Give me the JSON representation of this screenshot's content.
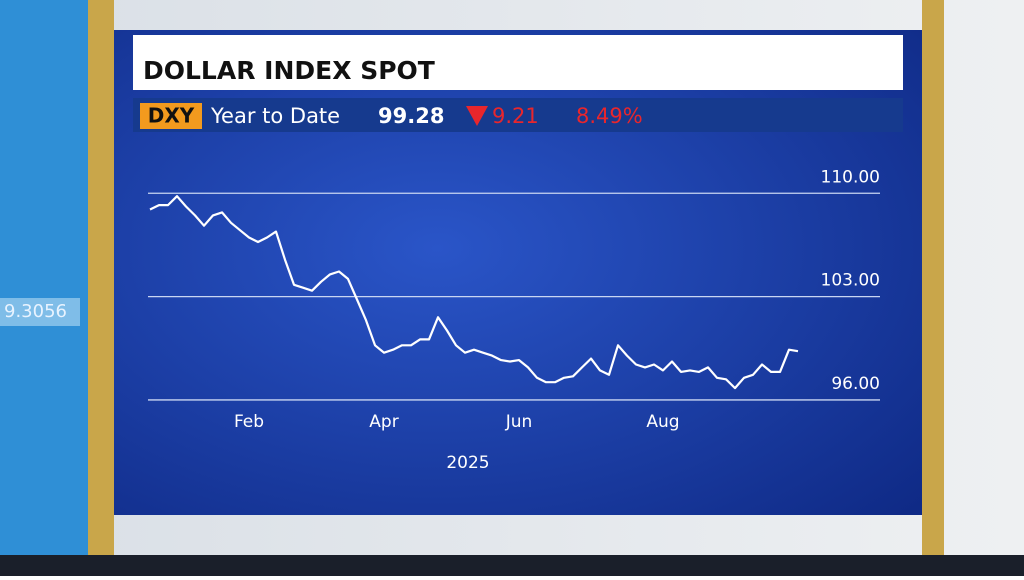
{
  "background_ticker": "9.3056",
  "header": {
    "symbol": "DXY",
    "period": "Year to Date",
    "last": "99.28",
    "change": "9.21",
    "change_pct": "8.49%"
  },
  "chart_data": {
    "type": "line",
    "title": "DOLLAR INDEX SPOT",
    "x_label": "2025",
    "categories": [
      null,
      null,
      null,
      null,
      null,
      null,
      null,
      null,
      null,
      null,
      null,
      "Feb",
      null,
      null,
      null,
      null,
      null,
      null,
      null,
      null,
      null,
      null,
      null,
      null,
      null,
      null,
      "Apr",
      null,
      null,
      null,
      null,
      null,
      null,
      null,
      null,
      null,
      null,
      null,
      null,
      null,
      null,
      "Jun",
      null,
      null,
      null,
      null,
      null,
      null,
      null,
      null,
      null,
      null,
      null,
      null,
      null,
      null,
      null,
      "Aug",
      null,
      null,
      null,
      null,
      null,
      null,
      null,
      null,
      null,
      null,
      null,
      null,
      null,
      null,
      null
    ],
    "series": [
      {
        "name": "DXY",
        "color": "#ffffff",
        "values": [
          108.9,
          109.2,
          109.2,
          109.8,
          109.1,
          108.5,
          107.8,
          108.5,
          108.7,
          108.0,
          107.5,
          107.0,
          106.7,
          107.0,
          107.4,
          105.5,
          103.8,
          103.6,
          103.4,
          104.0,
          104.5,
          104.7,
          104.2,
          102.8,
          101.4,
          99.7,
          99.2,
          99.4,
          99.7,
          99.7,
          100.1,
          100.1,
          101.6,
          100.7,
          99.7,
          99.2,
          99.4,
          99.2,
          99.0,
          98.7,
          98.6,
          98.7,
          98.2,
          97.5,
          97.2,
          97.2,
          97.5,
          97.6,
          98.2,
          98.8,
          98.0,
          97.7,
          99.7,
          99.0,
          98.4,
          98.2,
          98.4,
          98.0,
          98.6,
          97.9,
          98.0,
          97.9,
          98.2,
          97.5,
          97.4,
          96.8,
          97.5,
          97.7,
          98.4,
          97.9,
          97.9,
          99.4,
          99.3
        ]
      }
    ],
    "ylim": [
      94.64,
      112.93
    ],
    "yticks": [
      {
        "value": 96,
        "label": "96.00"
      },
      {
        "value": 103,
        "label": "103.00"
      },
      {
        "value": 110,
        "label": "110.00"
      }
    ],
    "grid": true
  }
}
